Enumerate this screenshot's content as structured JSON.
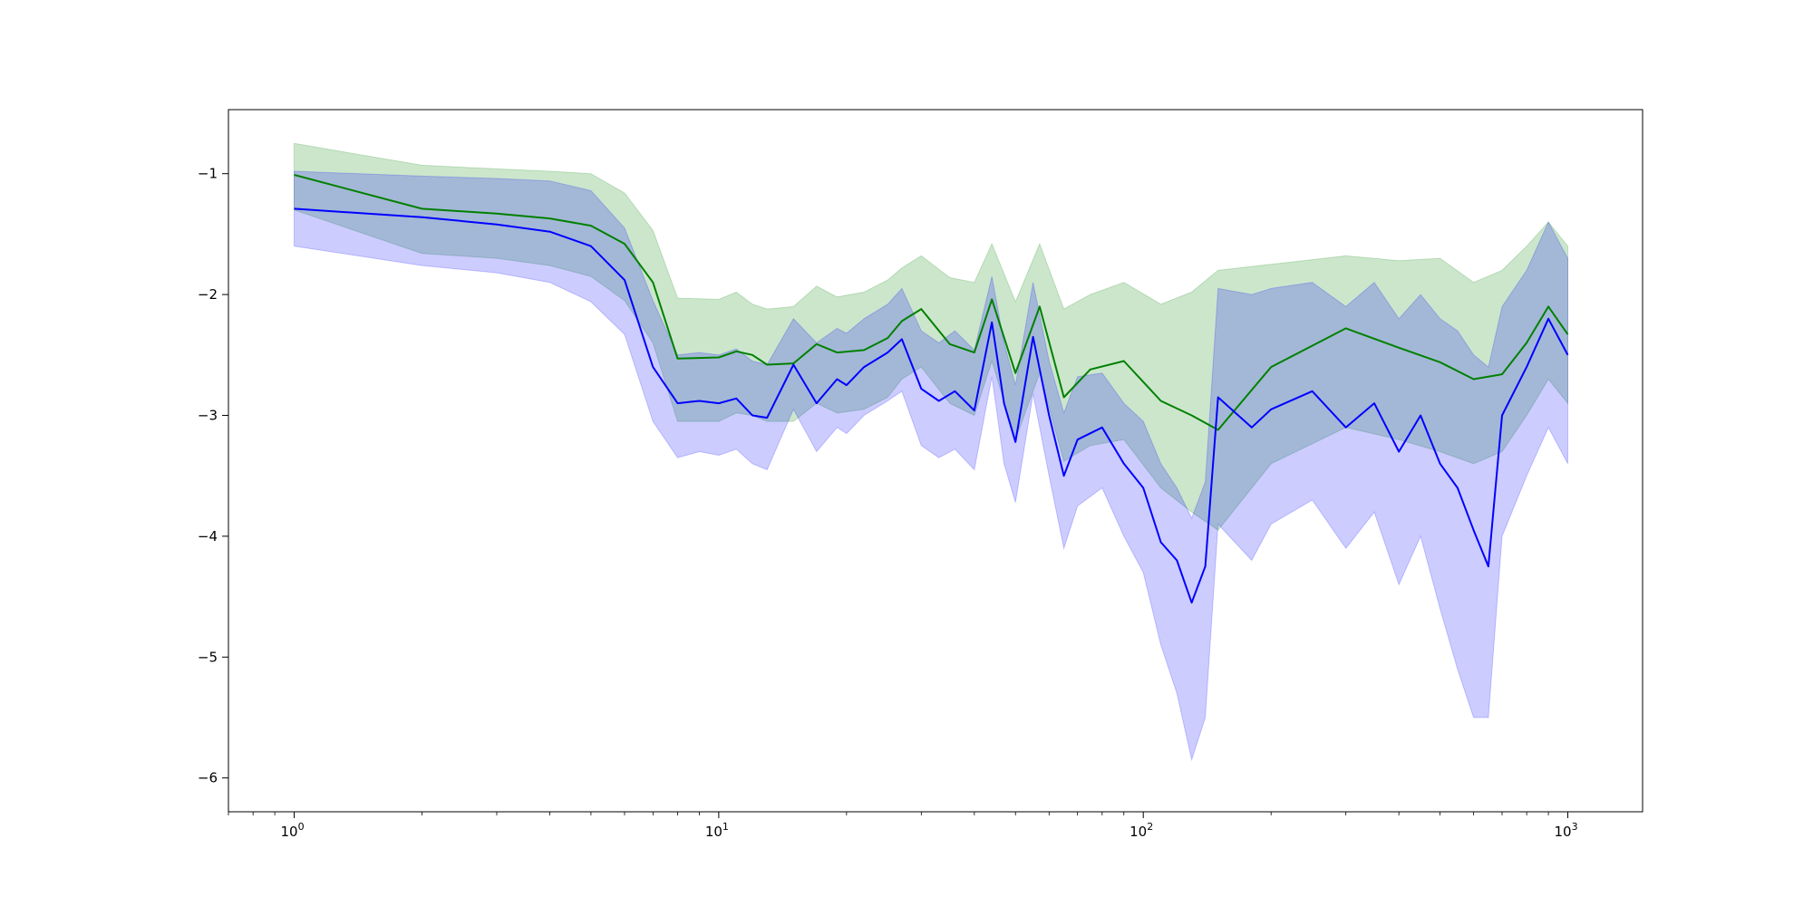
{
  "chart_data": {
    "type": "line",
    "title": "",
    "xlabel": "",
    "ylabel": "",
    "xscale": "log",
    "xlim": [
      0.7,
      1500
    ],
    "ylim": [
      -6.28,
      -0.47
    ],
    "grid": false,
    "legend": null,
    "x_ticks": [
      {
        "value": 1,
        "base": "10",
        "exp": "0"
      },
      {
        "value": 10,
        "base": "10",
        "exp": "1"
      },
      {
        "value": 100,
        "base": "10",
        "exp": "2"
      },
      {
        "value": 1000,
        "base": "10",
        "exp": "3"
      }
    ],
    "y_ticks": [
      {
        "value": -1,
        "label": "−1"
      },
      {
        "value": -2,
        "label": "−2"
      },
      {
        "value": -3,
        "label": "−3"
      },
      {
        "value": -4,
        "label": "−4"
      },
      {
        "value": -5,
        "label": "−5"
      },
      {
        "value": -6,
        "label": "−6"
      }
    ],
    "series": [
      {
        "color": "#008000",
        "band_color": "#008000",
        "band_opacity": 0.2,
        "x": [
          1,
          2,
          3,
          4,
          5,
          6,
          7,
          8,
          10,
          11,
          12,
          13,
          15,
          17,
          19,
          22,
          25,
          27,
          30,
          35,
          40,
          44,
          50,
          57,
          65,
          75,
          90,
          110,
          130,
          150,
          200,
          300,
          400,
          500,
          600,
          700,
          800,
          900,
          1000
        ],
        "mean": [
          -1.01,
          -1.29,
          -1.33,
          -1.37,
          -1.43,
          -1.58,
          -1.9,
          -2.53,
          -2.52,
          -2.47,
          -2.5,
          -2.58,
          -2.57,
          -2.41,
          -2.48,
          -2.46,
          -2.36,
          -2.22,
          -2.12,
          -2.41,
          -2.48,
          -2.04,
          -2.65,
          -2.1,
          -2.85,
          -2.62,
          -2.55,
          -2.88,
          -3.0,
          -3.12,
          -2.6,
          -2.28,
          -2.44,
          -2.56,
          -2.7,
          -2.66,
          -2.4,
          -2.1,
          -2.33
        ],
        "upper": [
          -0.75,
          -0.93,
          -0.96,
          -0.98,
          -1.0,
          -1.16,
          -1.47,
          -2.03,
          -2.04,
          -1.98,
          -2.08,
          -2.12,
          -2.1,
          -1.93,
          -2.02,
          -1.98,
          -1.88,
          -1.78,
          -1.68,
          -1.86,
          -1.9,
          -1.58,
          -2.06,
          -1.58,
          -2.12,
          -2.0,
          -1.9,
          -2.08,
          -1.98,
          -1.8,
          -1.75,
          -1.68,
          -1.72,
          -1.7,
          -1.9,
          -1.8,
          -1.6,
          -1.4,
          -1.6
        ],
        "lower": [
          -1.3,
          -1.66,
          -1.7,
          -1.76,
          -1.85,
          -2.05,
          -2.4,
          -3.05,
          -3.05,
          -2.98,
          -3.0,
          -3.05,
          -3.05,
          -2.9,
          -2.98,
          -2.95,
          -2.85,
          -2.7,
          -2.6,
          -2.9,
          -3.0,
          -2.55,
          -3.2,
          -2.65,
          -3.38,
          -3.25,
          -3.2,
          -3.6,
          -3.8,
          -3.95,
          -3.4,
          -3.1,
          -3.2,
          -3.3,
          -3.4,
          -3.3,
          -3.0,
          -2.7,
          -2.9
        ]
      },
      {
        "color": "#0000ff",
        "band_color": "#0000ff",
        "band_opacity": 0.2,
        "x": [
          1,
          2,
          3,
          4,
          5,
          6,
          7,
          8,
          9,
          10,
          11,
          12,
          13,
          15,
          17,
          19,
          20,
          22,
          25,
          27,
          30,
          33,
          36,
          40,
          44,
          47,
          50,
          55,
          60,
          65,
          70,
          80,
          90,
          100,
          110,
          120,
          130,
          140,
          150,
          180,
          200,
          250,
          300,
          350,
          400,
          450,
          500,
          550,
          600,
          650,
          700,
          800,
          900,
          1000
        ],
        "mean": [
          -1.29,
          -1.36,
          -1.42,
          -1.48,
          -1.6,
          -1.88,
          -2.6,
          -2.9,
          -2.88,
          -2.9,
          -2.86,
          -3.0,
          -3.02,
          -2.58,
          -2.9,
          -2.7,
          -2.75,
          -2.6,
          -2.48,
          -2.37,
          -2.78,
          -2.88,
          -2.8,
          -2.96,
          -2.23,
          -2.9,
          -3.22,
          -2.35,
          -3.0,
          -3.5,
          -3.2,
          -3.1,
          -3.4,
          -3.6,
          -4.05,
          -4.2,
          -4.55,
          -4.25,
          -2.85,
          -3.1,
          -2.95,
          -2.8,
          -3.1,
          -2.9,
          -3.3,
          -3.0,
          -3.4,
          -3.6,
          -3.95,
          -4.25,
          -3.0,
          -2.6,
          -2.2,
          -2.5
        ],
        "upper": [
          -0.98,
          -1.02,
          -1.04,
          -1.06,
          -1.14,
          -1.45,
          -2.05,
          -2.5,
          -2.48,
          -2.5,
          -2.45,
          -2.55,
          -2.58,
          -2.2,
          -2.4,
          -2.28,
          -2.32,
          -2.2,
          -2.08,
          -1.95,
          -2.3,
          -2.4,
          -2.3,
          -2.46,
          -1.85,
          -2.4,
          -2.75,
          -1.9,
          -2.55,
          -2.98,
          -2.68,
          -2.65,
          -2.9,
          -3.05,
          -3.4,
          -3.6,
          -3.85,
          -3.55,
          -1.95,
          -2.0,
          -1.95,
          -1.9,
          -2.1,
          -1.9,
          -2.2,
          -2.0,
          -2.2,
          -2.3,
          -2.5,
          -2.6,
          -2.1,
          -1.8,
          -1.4,
          -1.7
        ],
        "lower": [
          -1.6,
          -1.76,
          -1.82,
          -1.9,
          -2.06,
          -2.33,
          -3.05,
          -3.35,
          -3.3,
          -3.33,
          -3.28,
          -3.4,
          -3.45,
          -2.95,
          -3.3,
          -3.1,
          -3.15,
          -3.0,
          -2.88,
          -2.8,
          -3.25,
          -3.35,
          -3.28,
          -3.45,
          -2.68,
          -3.4,
          -3.72,
          -2.82,
          -3.5,
          -4.1,
          -3.75,
          -3.6,
          -4.0,
          -4.3,
          -4.9,
          -5.3,
          -5.85,
          -5.5,
          -3.9,
          -4.2,
          -3.9,
          -3.7,
          -4.1,
          -3.8,
          -4.4,
          -4.0,
          -4.6,
          -5.1,
          -5.5,
          -5.5,
          -4.0,
          -3.5,
          -3.1,
          -3.4
        ]
      }
    ]
  }
}
